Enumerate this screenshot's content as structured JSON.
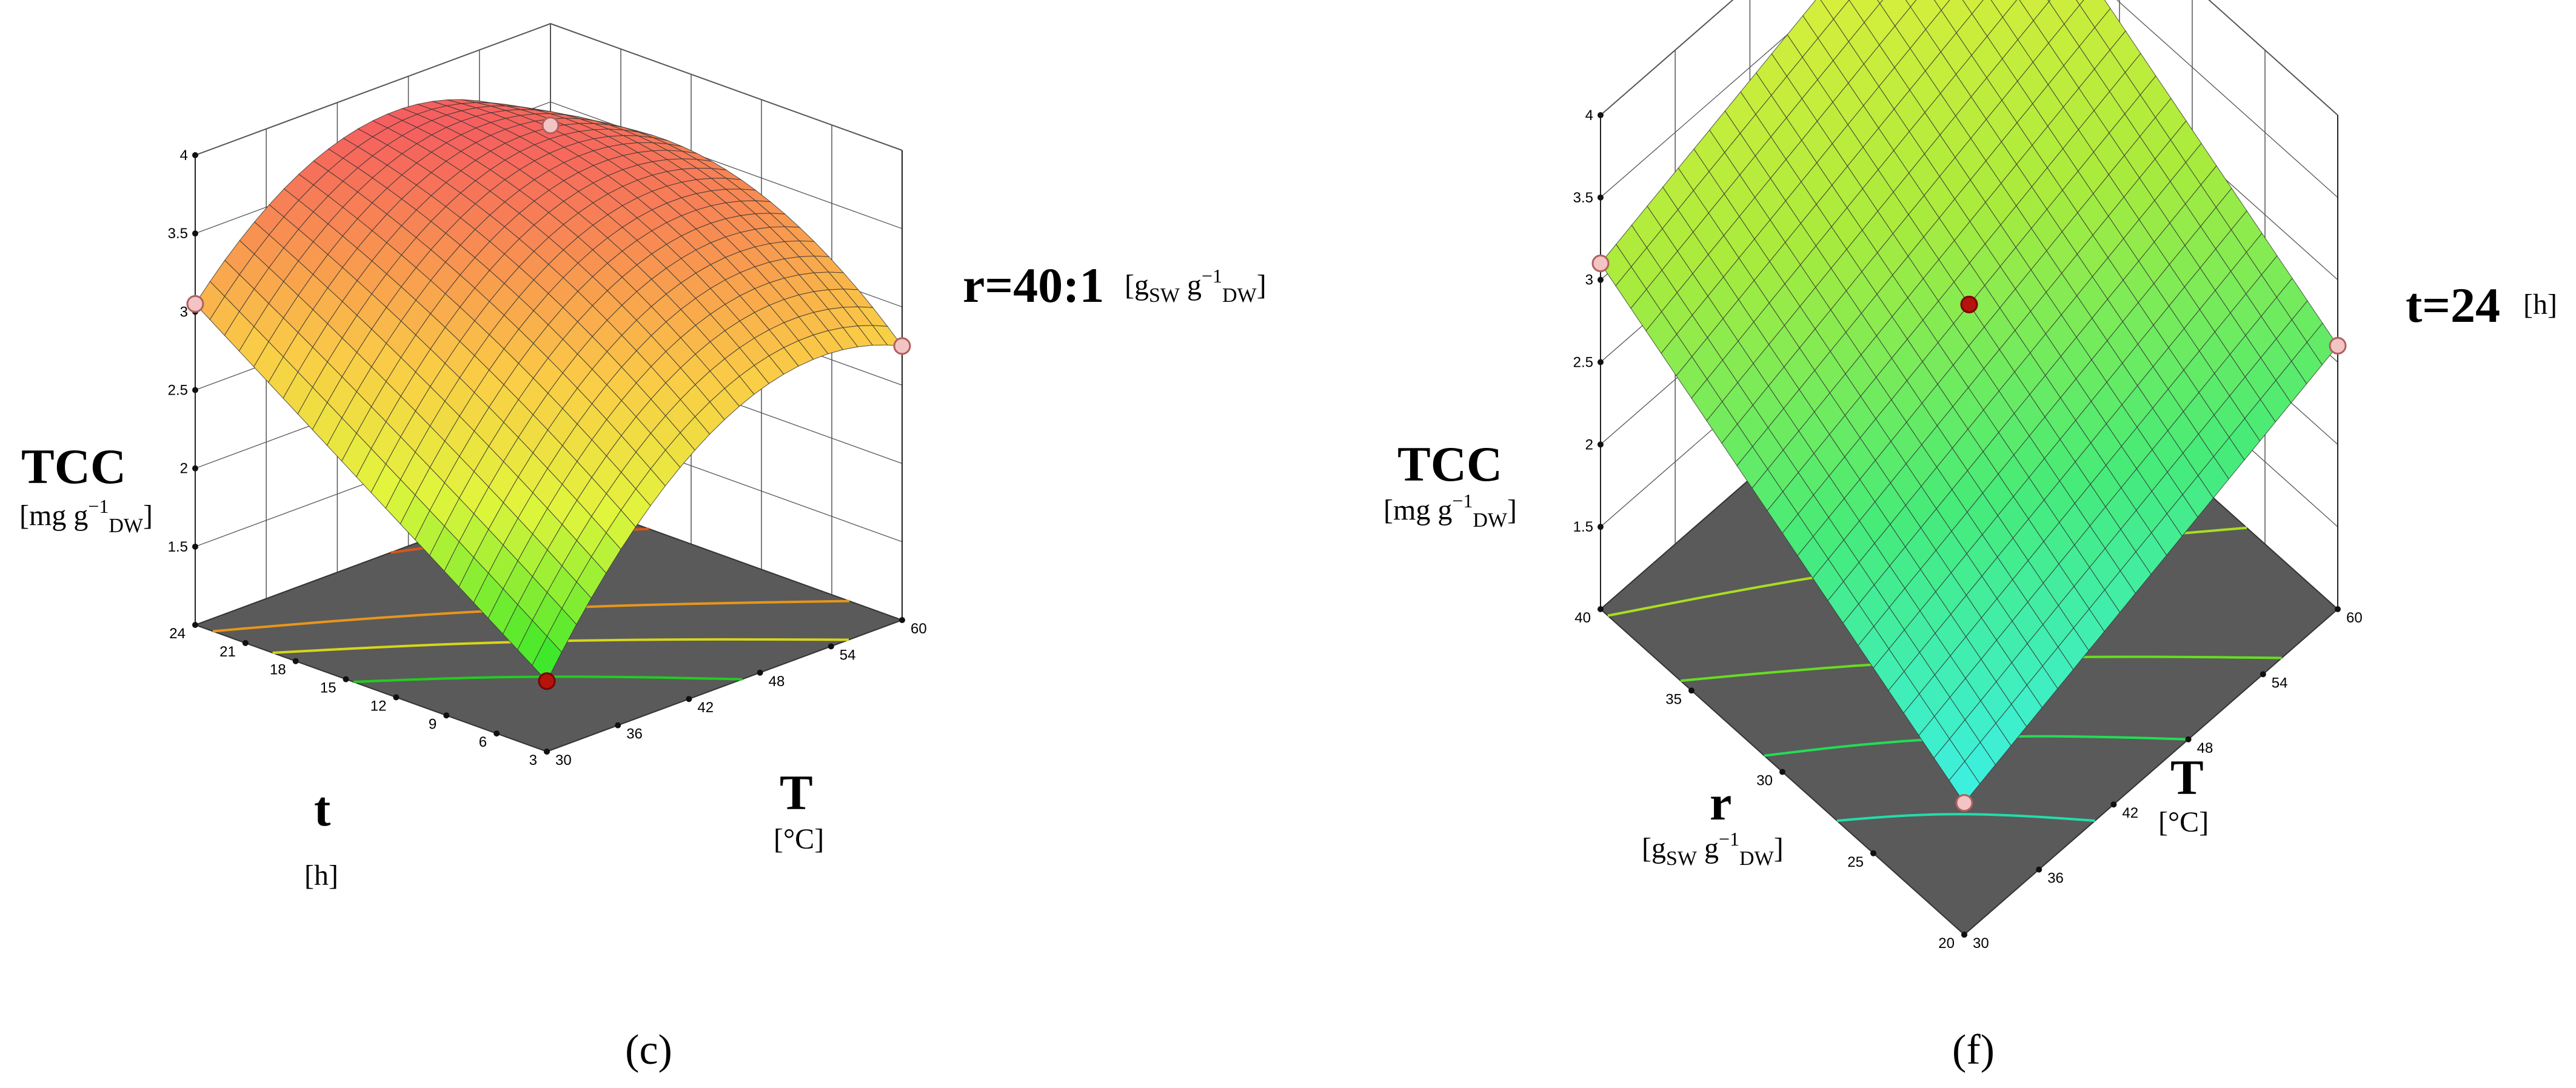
{
  "chart_data": [
    {
      "panel_label": "(c)",
      "type": "surface3d",
      "fixed_parameter": {
        "name": "r=40:1",
        "unit_main": "[g",
        "unit_sub1": "SW",
        "unit_mid": " g",
        "unit_sup": "−1",
        "unit_sub2": "DW",
        "unit_end": "]"
      },
      "x_axis": {
        "name": "T",
        "unit": "[°C]",
        "ticks": [
          "30",
          "36",
          "42",
          "48",
          "54",
          "60"
        ],
        "range": [
          30,
          60
        ]
      },
      "y_axis": {
        "name": "t",
        "unit": "[h]",
        "ticks": [
          "3",
          "6",
          "9",
          "12",
          "15",
          "18",
          "21",
          "24"
        ],
        "range": [
          3,
          24
        ]
      },
      "z_axis": {
        "name": "TCC",
        "unit_main": "[mg g",
        "unit_sup": "−1",
        "unit_sub": "DW",
        "unit_end": "]",
        "ticks": [
          "1.5",
          "2",
          "2.5",
          "3",
          "3.5",
          "4"
        ],
        "range": [
          1,
          4
        ]
      },
      "corner_values": {
        "T30_t3": 1.45,
        "T60_t3": 2.75,
        "T30_t24": 3.05,
        "T60_t24": 3.35
      },
      "peak_value": 3.8,
      "colormap": "green-yellow-orange-red"
    },
    {
      "panel_label": "(f)",
      "type": "surface3d",
      "fixed_parameter": {
        "name": "t=24",
        "unit": "[h]"
      },
      "x_axis": {
        "name": "T",
        "unit": "[°C]",
        "ticks": [
          "30",
          "36",
          "42",
          "48",
          "54",
          "60"
        ],
        "range": [
          30,
          60
        ]
      },
      "y_axis": {
        "name": "r",
        "unit_main": "[g",
        "unit_sub1": "SW",
        "unit_mid": " g",
        "unit_sup": "−1",
        "unit_sub2": "DW",
        "unit_end": "]",
        "ticks": [
          "20",
          "25",
          "30",
          "35",
          "40"
        ],
        "range": [
          20,
          40
        ]
      },
      "z_axis": {
        "name": "TCC",
        "unit_main": "[mg g",
        "unit_sup": "−1",
        "unit_sub": "DW",
        "unit_end": "]",
        "ticks": [
          "1.5",
          "2",
          "2.5",
          "3",
          "3.5",
          "4"
        ],
        "range": [
          1,
          4
        ]
      },
      "corner_values": {
        "T30_r20": 1.8,
        "T60_r20": 2.6,
        "T30_r40": 3.1,
        "T60_r40": 3.9
      },
      "colormap": "cyan-green-yellow"
    }
  ]
}
